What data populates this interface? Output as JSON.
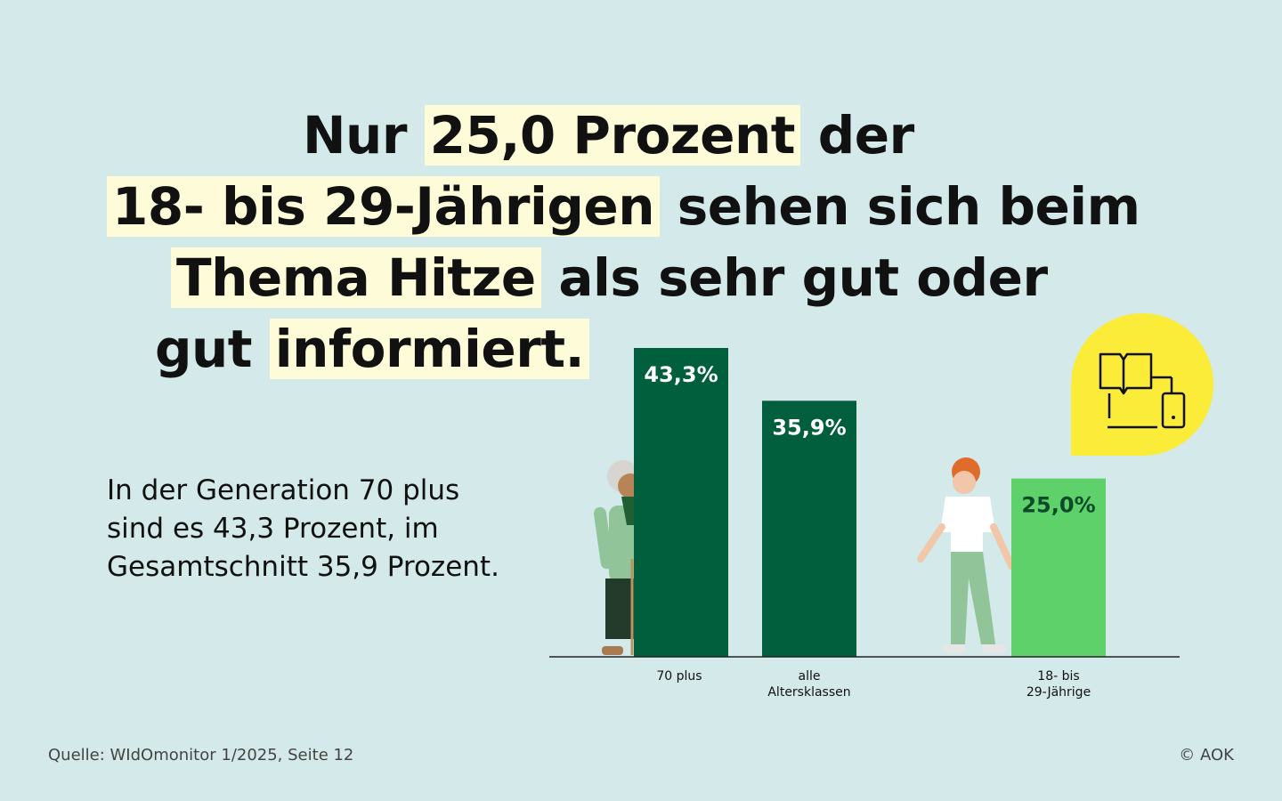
{
  "headline": {
    "line1": {
      "plain_before": "Nur ",
      "mark": "25,0 Prozent",
      "plain_after": " der"
    },
    "line2": {
      "mark": "18- bis 29-Jährigen",
      "plain_after": " sehen sich beim"
    },
    "line3": {
      "mark": "Thema Hitze",
      "plain_after": " als sehr gut oder"
    },
    "line4": {
      "plain_before": "gut ",
      "mark": "informiert."
    }
  },
  "subtext": {
    "line1": "In der Generation 70 plus",
    "line2": "sind es 43,3 Prozent, im",
    "line3": "Gesamtschnitt 35,9 Prozent."
  },
  "source": "Quelle: WIdOmonitor 1/2025, Seite 12",
  "copyright": "© AOK",
  "colors": {
    "background": "#d3e9ea",
    "bar_dark": "#015f3e",
    "bar_light": "#5fd16a",
    "highlight": "#fefbd8",
    "icon_bubble": "#fbec3a"
  },
  "icon": "book-and-devices-icon",
  "chart_data": {
    "type": "bar",
    "categories": [
      "70 plus",
      "alle Altersklassen",
      "18- bis 29-Jährige"
    ],
    "category_lines": [
      [
        "70 plus"
      ],
      [
        "alle",
        "Altersklassen"
      ],
      [
        "18- bis",
        "29-Jährige"
      ]
    ],
    "values": [
      43.3,
      35.9,
      25.0
    ],
    "value_labels": [
      "43,3%",
      "35,9%",
      "25,0%"
    ],
    "unit": "%",
    "ylim": [
      0,
      43.3
    ],
    "grid": false,
    "title": "",
    "xlabel": "",
    "ylabel": ""
  }
}
